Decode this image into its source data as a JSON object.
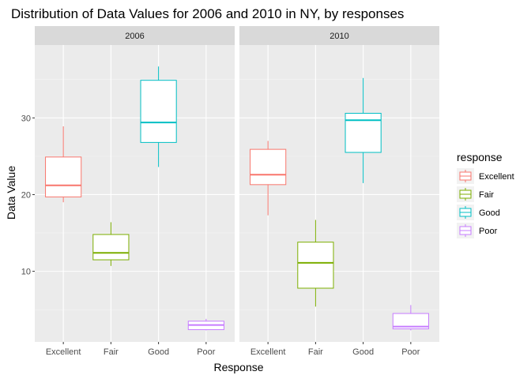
{
  "chart_data": {
    "type": "boxplot",
    "title": "Distribution of Data Values for 2006 and 2010 in NY, by responses",
    "xlabel": "Response",
    "ylabel": "Data Value",
    "categories": [
      "Excellent",
      "Fair",
      "Good",
      "Poor"
    ],
    "y_ticks": [
      10,
      20,
      30
    ],
    "ylim": [
      0.8,
      39.5
    ],
    "grid": true,
    "legend": {
      "title": "response",
      "position": "right",
      "entries": [
        "Excellent",
        "Fair",
        "Good",
        "Poor"
      ]
    },
    "colors": {
      "Excellent": "#F8766D",
      "Fair": "#7CAE00",
      "Good": "#00BFC4",
      "Poor": "#C77CFF"
    },
    "panels": [
      {
        "label": "2006",
        "boxes": [
          {
            "category": "Excellent",
            "min": 19.0,
            "q1": 19.7,
            "median": 21.2,
            "q3": 24.9,
            "max": 28.9
          },
          {
            "category": "Fair",
            "min": 10.7,
            "q1": 11.5,
            "median": 12.4,
            "q3": 14.8,
            "max": 16.4
          },
          {
            "category": "Good",
            "min": 23.6,
            "q1": 26.8,
            "median": 29.4,
            "q3": 34.9,
            "max": 36.7
          },
          {
            "category": "Poor",
            "min": 2.3,
            "q1": 2.4,
            "median": 3.0,
            "q3": 3.5,
            "max": 3.8
          }
        ]
      },
      {
        "label": "2010",
        "boxes": [
          {
            "category": "Excellent",
            "min": 17.3,
            "q1": 21.3,
            "median": 22.6,
            "q3": 25.9,
            "max": 27.0
          },
          {
            "category": "Fair",
            "min": 5.4,
            "q1": 7.8,
            "median": 11.1,
            "q3": 13.8,
            "max": 16.7
          },
          {
            "category": "Good",
            "min": 21.5,
            "q1": 25.5,
            "median": 29.7,
            "q3": 30.6,
            "max": 35.2
          },
          {
            "category": "Poor",
            "min": 2.3,
            "q1": 2.5,
            "median": 2.8,
            "q3": 4.5,
            "max": 5.6
          }
        ]
      }
    ]
  }
}
